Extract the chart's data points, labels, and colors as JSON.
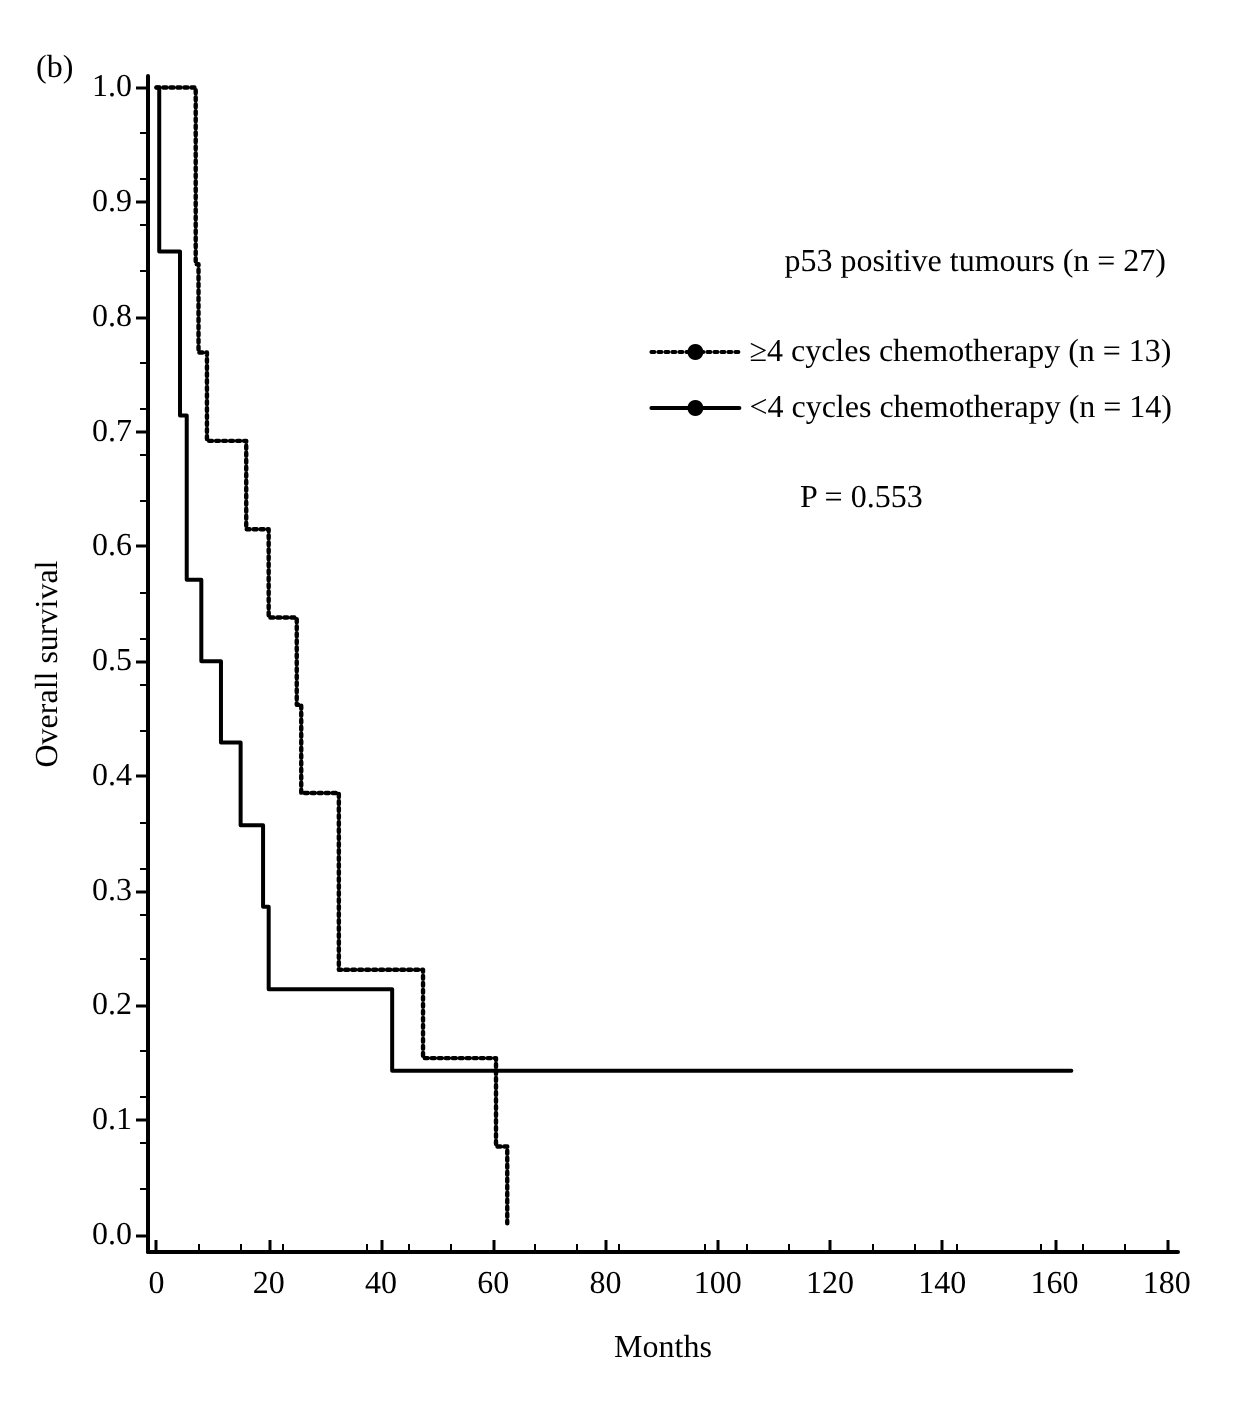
{
  "chart_data": {
    "type": "step",
    "xlabel": "Months",
    "ylabel": "Overall survival",
    "legend_title": "p53 positive tumours (n = 27)",
    "annotations": [
      "(b)",
      "P = 0.553"
    ],
    "series": [
      {
        "name": "≥4 cycles chemotherapy (n = 13)",
        "color": "#000000",
        "line_style": "dotted",
        "x": [
          0,
          7,
          7.5,
          9,
          16,
          20,
          25,
          25.8,
          32.5,
          47.5,
          60.5,
          62.5
        ],
        "values": [
          1.0,
          0.846,
          0.769,
          0.692,
          0.615,
          0.538,
          0.462,
          0.385,
          0.231,
          0.154,
          0.077,
          0.01
        ]
      },
      {
        "name": "<4 cycles chemotherapy (n = 14)",
        "color": "#000000",
        "line_style": "solid",
        "x": [
          0,
          0.5,
          4.2,
          5.4,
          8,
          11.5,
          15,
          19,
          20,
          42,
          163
        ],
        "values": [
          1.0,
          0.857,
          0.714,
          0.571,
          0.5,
          0.429,
          0.357,
          0.286,
          0.214,
          0.143,
          0.143
        ]
      }
    ],
    "xlim": [
      -1.5,
      182
    ],
    "xticks": [
      0,
      20,
      40,
      60,
      80,
      100,
      120,
      140,
      160,
      180
    ],
    "ylim": [
      -0.015,
      1.01
    ],
    "yticks": [
      {
        "value": 0,
        "label": "0.0"
      },
      0.1,
      0.2,
      0.3,
      0.4,
      0.5,
      0.6,
      0.7,
      0.8,
      0.9,
      {
        "value": 1,
        "label": "1.0"
      }
    ],
    "grid": false,
    "legend": "top right",
    "marker": "none"
  }
}
